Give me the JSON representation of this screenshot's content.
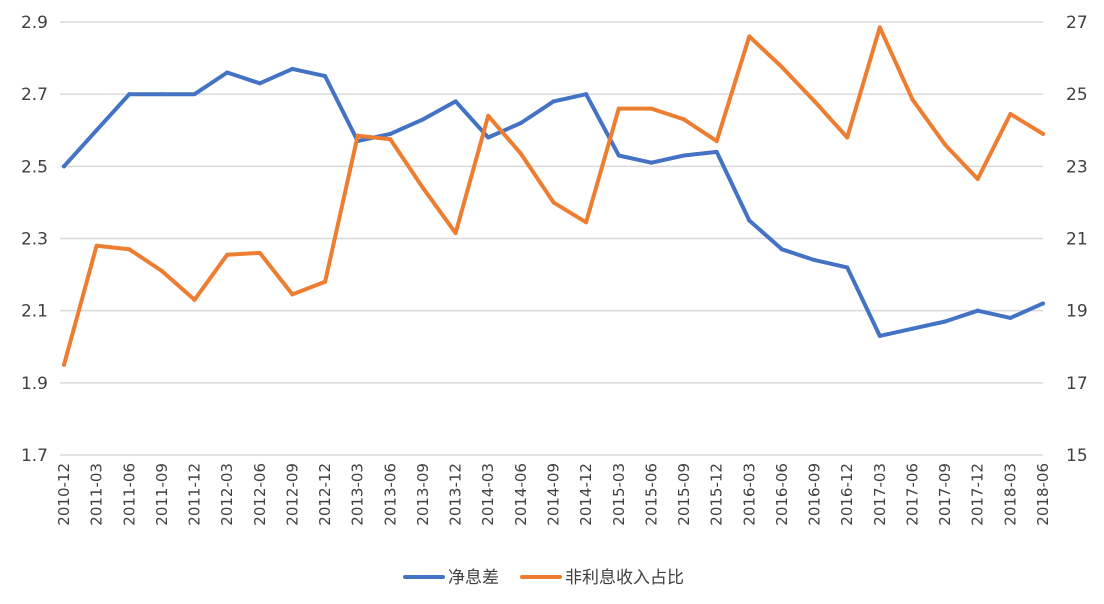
{
  "chart_data": {
    "type": "line",
    "title": "",
    "xlabel": "",
    "ylabel": "",
    "categories": [
      "2010-12",
      "2011-03",
      "2011-06",
      "2011-09",
      "2011-12",
      "2012-03",
      "2012-06",
      "2012-09",
      "2012-12",
      "2013-03",
      "2013-06",
      "2013-09",
      "2013-12",
      "2014-03",
      "2014-06",
      "2014-09",
      "2014-12",
      "2015-03",
      "2015-06",
      "2015-09",
      "2015-12",
      "2016-03",
      "2016-06",
      "2016-09",
      "2016-12",
      "2017-03",
      "2017-06",
      "2017-09",
      "2017-12",
      "2018-03",
      "2018-06"
    ],
    "y_left": {
      "range": [
        1.7,
        2.9
      ],
      "ticks": [
        "1.7",
        "1.9",
        "2.1",
        "2.3",
        "2.5",
        "2.7",
        "2.9"
      ]
    },
    "y_right": {
      "range": [
        15,
        27
      ],
      "ticks": [
        "15",
        "17",
        "19",
        "21",
        "23",
        "25",
        "27"
      ]
    },
    "grid": true,
    "legend_position": "bottom",
    "series": [
      {
        "name": "净息差",
        "axis": "left",
        "color": "#4472C4",
        "values": [
          2.5,
          2.6,
          2.7,
          2.7,
          2.7,
          2.76,
          2.73,
          2.77,
          2.75,
          2.57,
          2.59,
          2.63,
          2.68,
          2.58,
          2.62,
          2.68,
          2.7,
          2.53,
          2.51,
          2.53,
          2.54,
          2.35,
          2.27,
          2.24,
          2.22,
          2.03,
          2.05,
          2.07,
          2.1,
          2.08,
          2.12
        ]
      },
      {
        "name": "非利息收入占比",
        "axis": "right",
        "color": "#ED7D31",
        "values": [
          17.5,
          20.8,
          20.7,
          20.1,
          19.3,
          20.55,
          20.6,
          19.45,
          19.8,
          23.85,
          23.75,
          22.4,
          21.15,
          24.4,
          23.35,
          22.0,
          21.45,
          24.6,
          24.6,
          24.3,
          23.7,
          26.6,
          25.75,
          24.8,
          23.8,
          26.85,
          24.85,
          23.6,
          22.65,
          24.45,
          23.9
        ]
      }
    ]
  }
}
